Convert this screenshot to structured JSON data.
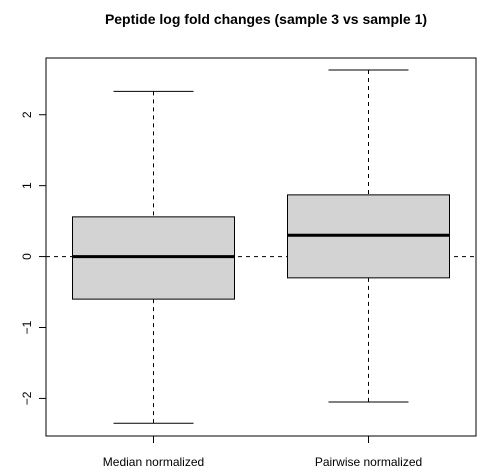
{
  "chart_data": {
    "type": "boxplot",
    "title": "Peptide log fold changes (sample 3 vs sample 1)",
    "xlabel": "",
    "ylabel": "",
    "categories": [
      "Median normalized",
      "Pairwise normalized"
    ],
    "boxes": [
      {
        "category": "Median normalized",
        "whisker_low": -2.35,
        "q1": -0.6,
        "median": 0.0,
        "q3": 0.56,
        "whisker_high": 2.33
      },
      {
        "category": "Pairwise normalized",
        "whisker_low": -2.05,
        "q1": -0.3,
        "median": 0.3,
        "q3": 0.87,
        "whisker_high": 2.63
      }
    ],
    "y_ticks": [
      -2,
      -1,
      0,
      1,
      2
    ],
    "ylim": [
      -2.53,
      2.8
    ],
    "reference_line": 0,
    "grid": false,
    "colors": {
      "box_fill": "#d3d3d3",
      "stroke": "#000000"
    }
  }
}
